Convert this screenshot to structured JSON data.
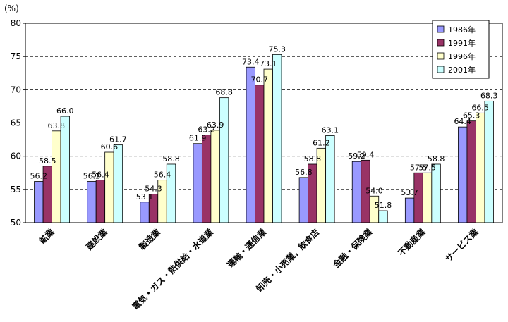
{
  "chart_data": {
    "type": "bar",
    "unit_label": "(%)",
    "ylim": [
      50,
      80
    ],
    "yticks": [
      50,
      55,
      60,
      65,
      70,
      75,
      80
    ],
    "grid": true,
    "legend_position": "top-right",
    "categories": [
      "鉱業",
      "建設業",
      "製造業",
      "電気・ガス・熱供給・水道業",
      "運輸・通信業",
      "卸売・小売業，飲食店",
      "金融・保険業",
      "不動産業",
      "サービス業"
    ],
    "series": [
      {
        "name": "1986年",
        "color": "#9999ff",
        "values": [
          56.2,
          56.2,
          53.1,
          61.9,
          73.4,
          56.8,
          59.2,
          53.7,
          64.4
        ]
      },
      {
        "name": "1991年",
        "color": "#993366",
        "values": [
          58.5,
          56.4,
          54.3,
          63.2,
          70.7,
          58.8,
          59.4,
          57.5,
          65.3
        ]
      },
      {
        "name": "1996年",
        "color": "#ffffcc",
        "values": [
          63.8,
          60.6,
          56.4,
          63.9,
          73.1,
          61.2,
          54.0,
          57.5,
          66.5
        ]
      },
      {
        "name": "2001年",
        "color": "#ccffff",
        "values": [
          66.0,
          61.7,
          58.8,
          68.8,
          75.3,
          63.1,
          51.8,
          58.8,
          68.3
        ]
      }
    ]
  }
}
